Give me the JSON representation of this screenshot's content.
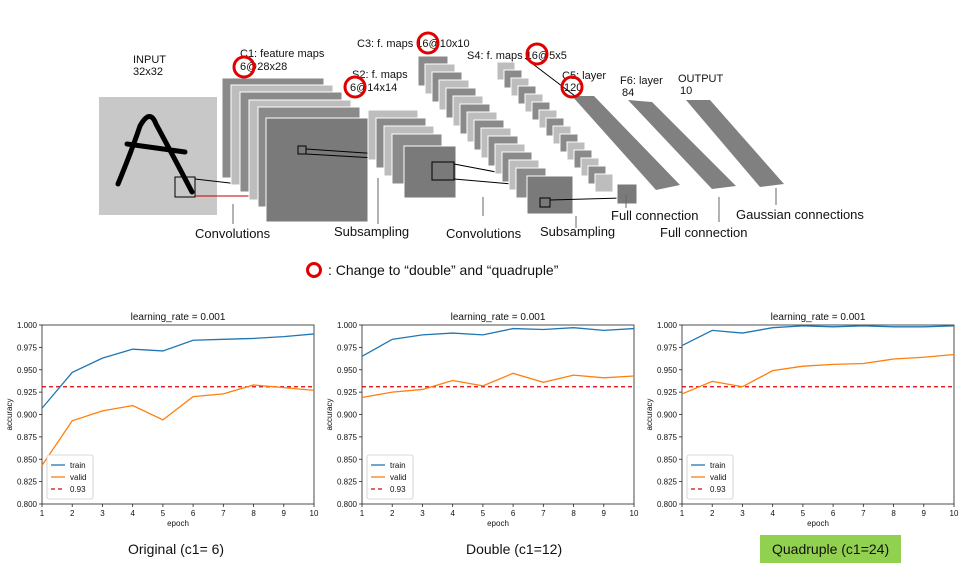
{
  "diagram": {
    "labels": {
      "input": "INPUT",
      "input_size": "32x32",
      "c1": "C1: feature maps",
      "c1_size_prefix": "6@28x28",
      "s2": "S2: f. maps",
      "s2_size": "6@14x14",
      "c3": "C3: f. maps 16@10x10",
      "s4": "S4: f. maps 16@5x5",
      "c5": "C5: layer",
      "c5_size": "120",
      "f6": "F6: layer",
      "f6_size": "84",
      "output": "OUTPUT",
      "output_size": "10",
      "op1": "Convolutions",
      "op2": "Subsampling",
      "op3": "Convolutions",
      "op4": "Subsampling",
      "op5": "Full connection",
      "op6": "Full connection",
      "op7": "Gaussian connections"
    },
    "highlight_color": "#e00000"
  },
  "note": {
    "text": ": Change to “double” and “quadruple”"
  },
  "captions": {
    "original": "Original (c1= 6)",
    "double": "Double (c1=12)",
    "quadruple": "Quadruple (c1=24)"
  },
  "chart_data": [
    {
      "type": "line",
      "title": "learning_rate = 0.001",
      "xlabel": "epoch",
      "ylabel": "accuracy",
      "xlim": [
        1,
        10
      ],
      "ylim": [
        0.8,
        1.0
      ],
      "xticks": [
        1,
        2,
        3,
        4,
        5,
        6,
        7,
        8,
        9,
        10
      ],
      "yticks": [
        "0.800",
        "0.825",
        "0.850",
        "0.875",
        "0.900",
        "0.925",
        "0.950",
        "0.975",
        "1.000"
      ],
      "x": [
        1,
        2,
        3,
        4,
        5,
        6,
        7,
        8,
        9,
        10
      ],
      "series": [
        {
          "name": "train",
          "color": "#1f77b4",
          "values": [
            0.907,
            0.947,
            0.963,
            0.973,
            0.971,
            0.983,
            0.984,
            0.985,
            0.987,
            0.99
          ]
        },
        {
          "name": "valid",
          "color": "#ff7f0e",
          "values": [
            0.843,
            0.893,
            0.904,
            0.91,
            0.894,
            0.92,
            0.923,
            0.933,
            0.93,
            0.927
          ]
        }
      ],
      "hline": {
        "name": "0.93",
        "value": 0.931,
        "color": "#e00000",
        "style": "dashed"
      },
      "legend": "lower-left"
    },
    {
      "type": "line",
      "title": "learning_rate = 0.001",
      "xlabel": "epoch",
      "ylabel": "accuracy",
      "xlim": [
        1,
        10
      ],
      "ylim": [
        0.8,
        1.0
      ],
      "xticks": [
        1,
        2,
        3,
        4,
        5,
        6,
        7,
        8,
        9,
        10
      ],
      "yticks": [
        "0.800",
        "0.825",
        "0.850",
        "0.875",
        "0.900",
        "0.925",
        "0.950",
        "0.975",
        "1.000"
      ],
      "x": [
        1,
        2,
        3,
        4,
        5,
        6,
        7,
        8,
        9,
        10
      ],
      "series": [
        {
          "name": "train",
          "color": "#1f77b4",
          "values": [
            0.965,
            0.984,
            0.989,
            0.991,
            0.989,
            0.996,
            0.995,
            0.997,
            0.994,
            0.996
          ]
        },
        {
          "name": "valid",
          "color": "#ff7f0e",
          "values": [
            0.919,
            0.925,
            0.928,
            0.938,
            0.932,
            0.946,
            0.936,
            0.944,
            0.941,
            0.943
          ]
        }
      ],
      "hline": {
        "name": "0.93",
        "value": 0.931,
        "color": "#e00000",
        "style": "dashed"
      },
      "legend": "lower-left"
    },
    {
      "type": "line",
      "title": "learning_rate = 0.001",
      "xlabel": "epoch",
      "ylabel": "accuracy",
      "xlim": [
        1,
        10
      ],
      "ylim": [
        0.8,
        1.0
      ],
      "xticks": [
        1,
        2,
        3,
        4,
        5,
        6,
        7,
        8,
        9,
        10
      ],
      "yticks": [
        "0.800",
        "0.825",
        "0.850",
        "0.875",
        "0.900",
        "0.925",
        "0.950",
        "0.975",
        "1.000"
      ],
      "x": [
        1,
        2,
        3,
        4,
        5,
        6,
        7,
        8,
        9,
        10
      ],
      "series": [
        {
          "name": "train",
          "color": "#1f77b4",
          "values": [
            0.977,
            0.994,
            0.991,
            0.997,
            0.999,
            0.998,
            0.999,
            0.998,
            0.998,
            0.999
          ]
        },
        {
          "name": "valid",
          "color": "#ff7f0e",
          "values": [
            0.923,
            0.937,
            0.931,
            0.949,
            0.954,
            0.956,
            0.957,
            0.962,
            0.964,
            0.967
          ]
        }
      ],
      "hline": {
        "name": "0.93",
        "value": 0.931,
        "color": "#e00000",
        "style": "dashed"
      },
      "legend": "lower-left"
    }
  ]
}
